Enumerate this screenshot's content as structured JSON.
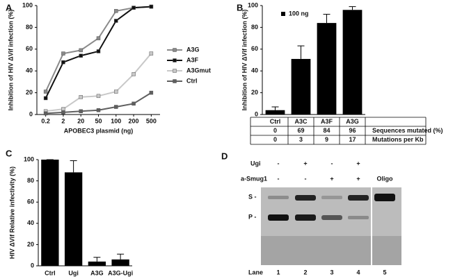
{
  "chart_data": [
    {
      "panel": "A",
      "type": "line",
      "y_label": "Inhibition of HIV ΔVif infection (%)",
      "x_label": "APOBEC3 plasmid (ng)",
      "categories": [
        "0.2",
        "2",
        "20",
        "50",
        "100",
        "200",
        "500"
      ],
      "ylim": [
        0,
        100
      ],
      "yticks": [
        0,
        20,
        40,
        60,
        80,
        100
      ],
      "legend": "right",
      "series": [
        {
          "name": "A3G",
          "color": "#8a8a8a",
          "values": [
            21,
            56,
            59,
            70,
            95,
            98,
            99
          ]
        },
        {
          "name": "A3F",
          "color": "#111111",
          "values": [
            15,
            48,
            54,
            58,
            86,
            98,
            99
          ]
        },
        {
          "name": "A3Gmut",
          "color": "#c8c8c8",
          "values": [
            3,
            5,
            16,
            17,
            21,
            37,
            56
          ]
        },
        {
          "name": "Ctrl",
          "color": "#5f5f5f",
          "values": [
            1,
            2,
            3,
            4,
            7,
            10,
            20
          ]
        }
      ]
    },
    {
      "panel": "B",
      "type": "bar",
      "y_label": "Inhibition of HIV ΔVif infection (%)",
      "series_label": "100 ng",
      "color": "#000000",
      "categories": [
        "Ctrl",
        "A3C",
        "A3F",
        "A3G"
      ],
      "values": [
        4,
        51,
        84,
        96
      ],
      "errors": [
        3,
        12,
        8,
        3
      ],
      "ylim": [
        0,
        100
      ],
      "yticks": [
        0,
        20,
        40,
        60,
        80,
        100
      ],
      "table": {
        "rows": [
          {
            "label": "Sequences mutated (%)",
            "values": [
              0,
              69,
              84,
              96
            ]
          },
          {
            "label": "Mutations per Kb",
            "values": [
              0,
              3,
              9,
              17
            ]
          }
        ]
      }
    },
    {
      "panel": "C",
      "type": "bar",
      "y_label": "HIV ΔVif Relative infectivity (%)",
      "color": "#000000",
      "categories": [
        "Ctrl",
        "Ugi",
        "A3G",
        "A3G-Ugi"
      ],
      "values": [
        100,
        88,
        4,
        6
      ],
      "errors": [
        0,
        11,
        4,
        5
      ],
      "ylim": [
        0,
        100
      ],
      "yticks": [
        0,
        20,
        40,
        60,
        80,
        100
      ]
    }
  ],
  "gel": {
    "panel": "D",
    "rows": [
      {
        "label": "Ugi",
        "signs": [
          "-",
          "+",
          "-",
          "+"
        ]
      },
      {
        "label": "a-Smug1",
        "signs": [
          "-",
          "-",
          "+",
          "+"
        ]
      }
    ],
    "oligo": "Oligo",
    "bands": [
      "S -",
      "P -"
    ],
    "lane_label": "Lane",
    "lanes": [
      "1",
      "2",
      "3",
      "4",
      "5"
    ]
  }
}
